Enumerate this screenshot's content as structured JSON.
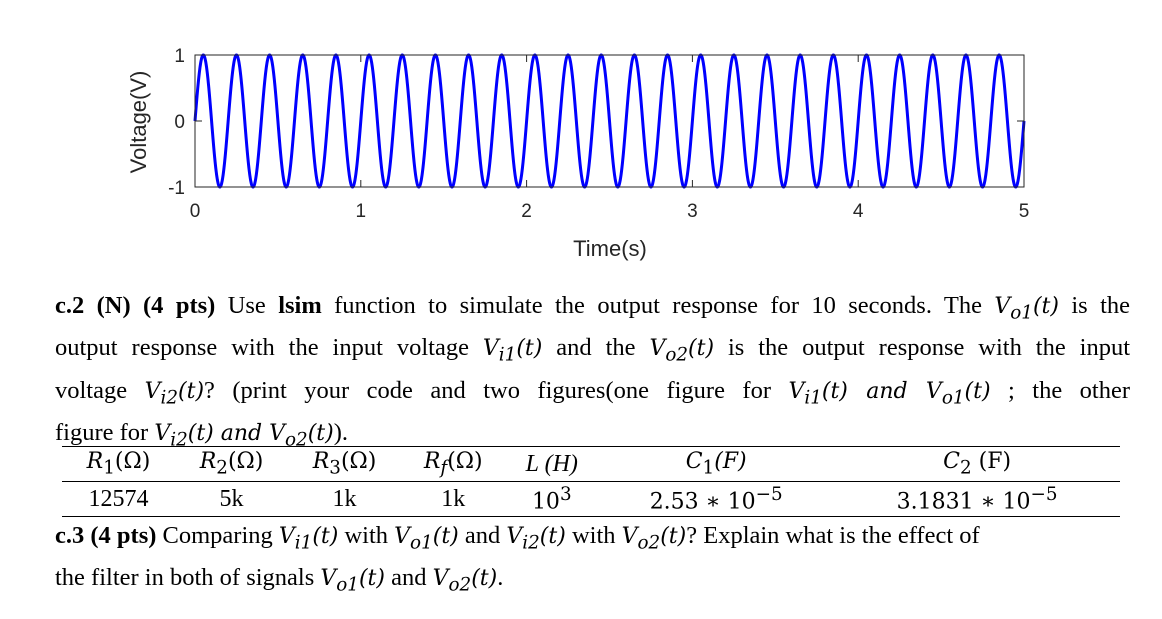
{
  "chart_data": {
    "type": "line",
    "xlabel": "Time(s)",
    "ylabel": "Voltage(V)",
    "xlim": [
      0,
      5
    ],
    "ylim": [
      -1,
      1
    ],
    "xticks": [
      "0",
      "1",
      "2",
      "3",
      "4",
      "5"
    ],
    "yticks": [
      "-1",
      "0",
      "1"
    ],
    "series": [
      {
        "function": "sin(2*pi*5*t)",
        "amplitude": 1,
        "frequency_hz": 5,
        "t_start": 0,
        "t_end": 5,
        "color": "#0000ff"
      }
    ],
    "grid": false
  },
  "question_c2": {
    "label": "c.2 (N) (4 pts)",
    "t1": "Use",
    "t2": "lsim",
    "t3": "function to simulate the output response for 10 seconds. The",
    "m1": "V",
    "m1sub": "o1",
    "m1arg": "(t)",
    "t4": "is the",
    "t5": "output response with the input  voltage",
    "m2": "V",
    "m2sub": "i1",
    "m2arg": "(t)",
    "t6": "and the",
    "m3": "V",
    "m3sub": "o2",
    "m3arg": "(t)",
    "t7": "is the output response with the input",
    "t8": "voltage",
    "m4": "V",
    "m4sub": "i2",
    "m4arg": "(t)",
    "t9": "?  (print your code and two figures(one figure for",
    "m5": "V",
    "m5sub": "i1",
    "m5arg": "(t) and V",
    "m5sub2": "o1",
    "m5arg2": "(t)",
    "t10": "; the other",
    "t11": "figure for",
    "m6": "V",
    "m6sub": "i2",
    "m6arg": "(t) and V",
    "m6sub2": "o2",
    "m6arg2": "(t)",
    "t12": ")."
  },
  "table": {
    "headers": [
      "R₁(Ω)",
      "R₂(Ω)",
      "R₃(Ω)",
      "R_f(Ω)",
      "L (H)",
      "C₁(F)",
      "C₂ (F)"
    ],
    "h_r1": "R",
    "h_r1s": "1",
    "h_r1u": "(Ω)",
    "h_r2": "R",
    "h_r2s": "2",
    "h_r2u": "(Ω)",
    "h_r3": "R",
    "h_r3s": "3",
    "h_r3u": "(Ω)",
    "h_rf": "R",
    "h_rfs": "f",
    "h_rfu": "(Ω)",
    "h_l": "L (H)",
    "h_c1": "C",
    "h_c1s": "1",
    "h_c1u": "(F)",
    "h_c2": "C",
    "h_c2s": "2",
    "h_c2u": " (F)",
    "v_r1": "12574",
    "v_r2": "5k",
    "v_r3": "1k",
    "v_rf": "1k",
    "v_l": "10",
    "v_l_exp": "3",
    "v_c1": "2.53 ∗ 10",
    "v_c1_exp": "−5",
    "v_c2": "3.1831 ∗ 10",
    "v_c2_exp": "−5"
  },
  "question_c3": {
    "label": "c.3 (4 pts)",
    "t1": "Comparing",
    "m1": "V",
    "m1sub": "i1",
    "m1arg": "(t)",
    "t2": "with",
    "m2": "V",
    "m2sub": "o1",
    "m2arg": "(t)",
    "t3": "and",
    "m3": "V",
    "m3sub": "i2",
    "m3arg": "(t)",
    "t4": "with",
    "m4": "V",
    "m4sub": "o2",
    "m4arg": "(t)",
    "t5": "? Explain what is the effect of",
    "t6": "the filter in both of signals",
    "m5": "V",
    "m5sub": "o1",
    "m5arg": "(t)",
    "t7": "and",
    "m6": "V",
    "m6sub": "o2",
    "m6arg": "(t)",
    "t8": "."
  }
}
